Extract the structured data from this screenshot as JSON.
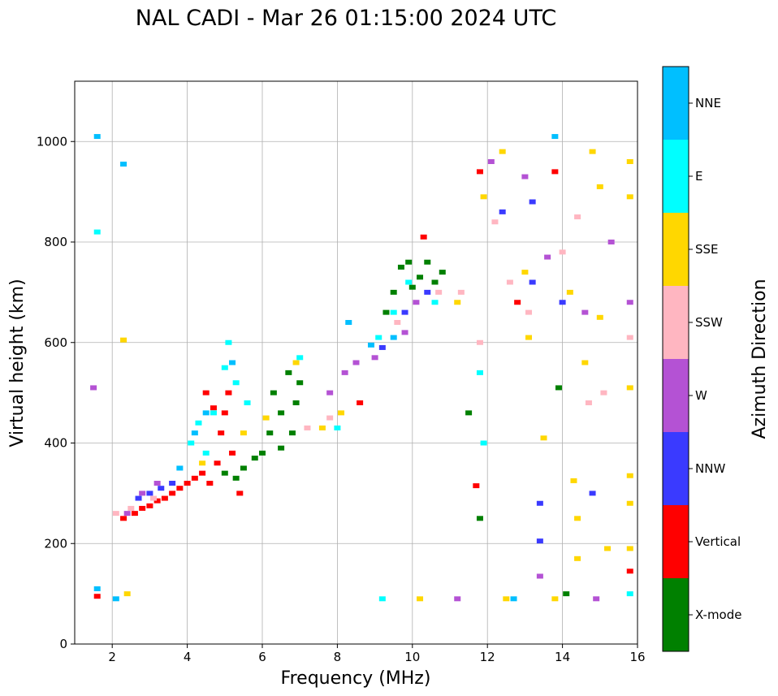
{
  "chart_data": {
    "type": "scatter",
    "title": "NAL CADI - Mar 26 01:15:00 2024 UTC",
    "xlabel": "Frequency (MHz)",
    "ylabel": "Virtual height (km)",
    "xlim": [
      1,
      16
    ],
    "ylim": [
      0,
      1120
    ],
    "xticks": [
      "2",
      "4",
      "6",
      "8",
      "10",
      "12",
      "14",
      "16"
    ],
    "yticks": [
      "0",
      "200",
      "400",
      "600",
      "800",
      "1000"
    ],
    "grid": true,
    "colorbar": {
      "label": "Azimuth Direction",
      "categories": [
        {
          "name": "X-mode",
          "color": "#008000"
        },
        {
          "name": "Vertical",
          "color": "#ff0000"
        },
        {
          "name": "NNW",
          "color": "#3a3aff"
        },
        {
          "name": "W",
          "color": "#b452d4"
        },
        {
          "name": "SSW",
          "color": "#ffb6c1"
        },
        {
          "name": "SSE",
          "color": "#ffd700"
        },
        {
          "name": "E",
          "color": "#00ffff"
        },
        {
          "name": "NNE",
          "color": "#00bfff"
        }
      ]
    },
    "series": [
      {
        "name": "X-mode",
        "points": [
          [
            5.0,
            340
          ],
          [
            5.3,
            330
          ],
          [
            5.5,
            350
          ],
          [
            5.8,
            370
          ],
          [
            6.0,
            380
          ],
          [
            6.2,
            420
          ],
          [
            6.3,
            500
          ],
          [
            6.5,
            390
          ],
          [
            6.5,
            460
          ],
          [
            6.7,
            540
          ],
          [
            6.8,
            420
          ],
          [
            6.9,
            480
          ],
          [
            7.0,
            520
          ],
          [
            9.3,
            660
          ],
          [
            9.5,
            700
          ],
          [
            9.7,
            750
          ],
          [
            9.9,
            760
          ],
          [
            10.0,
            710
          ],
          [
            10.2,
            730
          ],
          [
            10.4,
            760
          ],
          [
            10.6,
            720
          ],
          [
            10.8,
            740
          ],
          [
            11.5,
            460
          ],
          [
            11.8,
            250
          ],
          [
            13.9,
            510
          ],
          [
            14.1,
            100
          ]
        ]
      },
      {
        "name": "Vertical",
        "points": [
          [
            2.3,
            250
          ],
          [
            2.6,
            260
          ],
          [
            2.8,
            270
          ],
          [
            3.0,
            275
          ],
          [
            3.2,
            285
          ],
          [
            3.4,
            290
          ],
          [
            3.6,
            300
          ],
          [
            3.8,
            310
          ],
          [
            4.0,
            320
          ],
          [
            4.2,
            330
          ],
          [
            4.4,
            340
          ],
          [
            4.6,
            320
          ],
          [
            4.8,
            360
          ],
          [
            4.9,
            420
          ],
          [
            5.0,
            460
          ],
          [
            5.1,
            500
          ],
          [
            5.2,
            380
          ],
          [
            5.4,
            300
          ],
          [
            4.5,
            500
          ],
          [
            4.7,
            470
          ],
          [
            1.6,
            95
          ],
          [
            8.6,
            480
          ],
          [
            10.3,
            810
          ],
          [
            11.8,
            940
          ],
          [
            12.8,
            680
          ],
          [
            13.8,
            940
          ],
          [
            15.8,
            145
          ],
          [
            11.7,
            315
          ]
        ]
      },
      {
        "name": "NNW",
        "points": [
          [
            2.7,
            290
          ],
          [
            3.0,
            300
          ],
          [
            3.3,
            310
          ],
          [
            3.6,
            320
          ],
          [
            9.2,
            590
          ],
          [
            9.8,
            660
          ],
          [
            10.4,
            700
          ],
          [
            12.4,
            860
          ],
          [
            13.2,
            880
          ],
          [
            13.4,
            280
          ],
          [
            13.4,
            205
          ],
          [
            13.2,
            720
          ],
          [
            14.0,
            680
          ],
          [
            14.8,
            300
          ]
        ]
      },
      {
        "name": "W",
        "points": [
          [
            2.4,
            260
          ],
          [
            2.8,
            300
          ],
          [
            3.2,
            320
          ],
          [
            7.8,
            500
          ],
          [
            8.2,
            540
          ],
          [
            8.5,
            560
          ],
          [
            9.0,
            570
          ],
          [
            9.8,
            620
          ],
          [
            10.1,
            680
          ],
          [
            11.2,
            90
          ],
          [
            12.1,
            960
          ],
          [
            13.0,
            930
          ],
          [
            13.4,
            135
          ],
          [
            13.6,
            770
          ],
          [
            14.6,
            660
          ],
          [
            14.9,
            90
          ],
          [
            15.3,
            800
          ],
          [
            15.8,
            680
          ],
          [
            1.5,
            510
          ]
        ]
      },
      {
        "name": "SSW",
        "points": [
          [
            2.1,
            260
          ],
          [
            2.5,
            270
          ],
          [
            3.1,
            290
          ],
          [
            7.2,
            430
          ],
          [
            7.8,
            450
          ],
          [
            9.6,
            640
          ],
          [
            10.7,
            700
          ],
          [
            11.3,
            700
          ],
          [
            11.8,
            600
          ],
          [
            12.2,
            840
          ],
          [
            12.6,
            720
          ],
          [
            13.1,
            660
          ],
          [
            14.4,
            850
          ],
          [
            14.7,
            480
          ],
          [
            15.1,
            500
          ],
          [
            15.8,
            610
          ],
          [
            14.0,
            780
          ]
        ]
      },
      {
        "name": "SSE",
        "points": [
          [
            2.3,
            605
          ],
          [
            2.4,
            100
          ],
          [
            4.4,
            360
          ],
          [
            5.5,
            420
          ],
          [
            6.1,
            450
          ],
          [
            6.9,
            560
          ],
          [
            7.6,
            430
          ],
          [
            8.1,
            460
          ],
          [
            11.2,
            680
          ],
          [
            11.9,
            890
          ],
          [
            12.4,
            980
          ],
          [
            13.0,
            740
          ],
          [
            13.1,
            610
          ],
          [
            13.5,
            410
          ],
          [
            13.8,
            90
          ],
          [
            14.2,
            700
          ],
          [
            14.3,
            325
          ],
          [
            14.4,
            250
          ],
          [
            14.6,
            560
          ],
          [
            14.8,
            980
          ],
          [
            15.0,
            910
          ],
          [
            15.0,
            650
          ],
          [
            15.2,
            190
          ],
          [
            15.8,
            960
          ],
          [
            15.8,
            890
          ],
          [
            15.8,
            510
          ],
          [
            15.8,
            335
          ],
          [
            15.8,
            280
          ],
          [
            15.8,
            190
          ],
          [
            12.5,
            90
          ],
          [
            10.2,
            90
          ],
          [
            14.4,
            170
          ]
        ]
      },
      {
        "name": "E",
        "points": [
          [
            1.6,
            820
          ],
          [
            4.1,
            400
          ],
          [
            4.3,
            440
          ],
          [
            4.5,
            380
          ],
          [
            4.7,
            460
          ],
          [
            5.0,
            550
          ],
          [
            5.1,
            600
          ],
          [
            5.3,
            520
          ],
          [
            5.6,
            480
          ],
          [
            7.0,
            570
          ],
          [
            8.0,
            430
          ],
          [
            9.1,
            610
          ],
          [
            9.5,
            660
          ],
          [
            9.9,
            720
          ],
          [
            10.6,
            680
          ],
          [
            11.8,
            540
          ],
          [
            11.9,
            400
          ],
          [
            9.2,
            90
          ],
          [
            15.8,
            100
          ]
        ]
      },
      {
        "name": "NNE",
        "points": [
          [
            1.6,
            1010
          ],
          [
            1.6,
            110
          ],
          [
            2.3,
            955
          ],
          [
            2.1,
            90
          ],
          [
            3.8,
            350
          ],
          [
            4.2,
            420
          ],
          [
            4.5,
            460
          ],
          [
            5.2,
            560
          ],
          [
            8.9,
            595
          ],
          [
            8.3,
            640
          ],
          [
            9.5,
            610
          ],
          [
            12.7,
            90
          ],
          [
            13.8,
            1010
          ]
        ]
      }
    ]
  }
}
